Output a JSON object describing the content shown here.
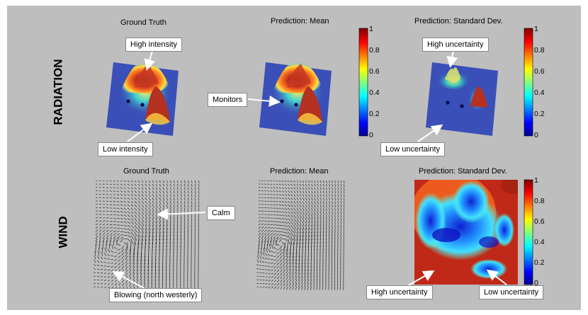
{
  "rows": {
    "radiation": "RADIATION",
    "wind": "WIND"
  },
  "titles": {
    "rad_gt": "Ground Truth",
    "rad_mean": "Prediction: Mean",
    "rad_std": "Prediction: Standard Dev.",
    "wind_gt": "Ground Truth",
    "wind_mean": "Prediction: Mean",
    "wind_std": "Prediction: Standard Dev."
  },
  "callouts": {
    "high_intensity": "High intensity",
    "low_intensity": "Low intensity",
    "monitors": "Monitors",
    "high_uncertainty_rad": "High uncertainty",
    "low_uncertainty_rad": "Low uncertainty",
    "calm": "Calm",
    "blowing": "Blowing (north westerly)",
    "high_uncertainty_wind": "High uncertainty",
    "low_uncertainty_wind": "Low uncertainty"
  },
  "colorbar": {
    "ticks": [
      "1",
      "0.8",
      "0.6",
      "0.4",
      "0.2",
      "0"
    ],
    "colormap": [
      "#00008f",
      "#0000ff",
      "#00ffff",
      "#ffff00",
      "#ff0000",
      "#800000"
    ]
  },
  "colors": {
    "panel_bg": "#bebebe",
    "plane": "#3a4fb8"
  }
}
